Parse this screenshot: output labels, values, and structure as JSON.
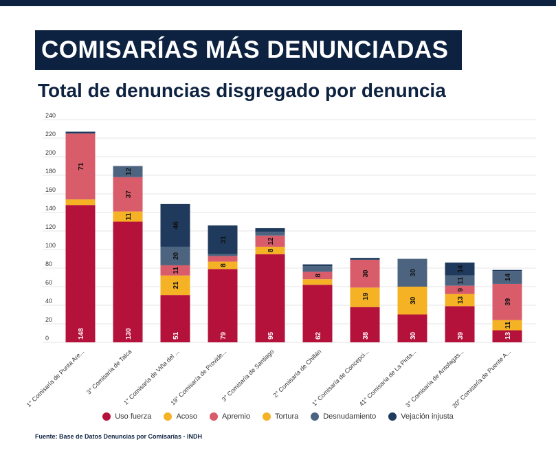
{
  "header": {
    "title": "COMISARÍAS MÁS DENUNCIADAS",
    "subtitle": "Total de denuncias disgregado por denuncia"
  },
  "source": "Fuente: Base de Datos Denuncias por Comisarías - INDH",
  "colors": {
    "header_bg": "#0d2240",
    "Uso fuerza": "#b5123b",
    "Acoso": "#f4b224",
    "Apremio": "#d95c6b",
    "Tortura": "#f4b224",
    "Desnudamiento": "#4d6480",
    "Vejación injusta": "#1f3a5c"
  },
  "chart_data": {
    "type": "bar",
    "stacked": true,
    "categories": [
      "1° Comisaría de Punta Are...",
      "3° Comisaría de Talca",
      "1° Comisaría de Viña del ...",
      "19° Comisaría de Provide...",
      "3° Comisaría de Santiago",
      "2° Comisaría de Chillán",
      "1° Comisaría de Concepci...",
      "41° Comisaría de La Pinta...",
      "3° Comisaría de Antofagas...",
      "20° Comisaría de Puente A..."
    ],
    "series": [
      {
        "name": "Uso fuerza",
        "values": [
          148,
          130,
          51,
          79,
          95,
          62,
          38,
          30,
          39,
          13
        ]
      },
      {
        "name": "Acoso",
        "values": [
          2,
          0,
          0,
          0,
          0,
          0,
          2,
          0,
          0,
          0
        ]
      },
      {
        "name": "Tortura",
        "values": [
          4,
          11,
          21,
          8,
          8,
          6,
          19,
          30,
          13,
          11
        ]
      },
      {
        "name": "Apremio",
        "values": [
          71,
          37,
          11,
          6,
          12,
          8,
          30,
          0,
          9,
          39
        ]
      },
      {
        "name": "Desnudamiento",
        "values": [
          0,
          12,
          20,
          2,
          4,
          6,
          0,
          30,
          11,
          14
        ]
      },
      {
        "name": "Vejación injusta",
        "values": [
          2,
          0,
          46,
          31,
          4,
          2,
          2,
          0,
          14,
          1
        ]
      }
    ],
    "data_labels": [
      [
        "148",
        "",
        "",
        "71",
        "",
        ""
      ],
      [
        "130",
        "",
        "11",
        "37",
        "12",
        ""
      ],
      [
        "51",
        "",
        "21",
        "11",
        "20",
        "46"
      ],
      [
        "79",
        "",
        "8",
        "",
        "",
        "31"
      ],
      [
        "95",
        "",
        "8",
        "12",
        "",
        ""
      ],
      [
        "62",
        "",
        "",
        "8",
        "",
        ""
      ],
      [
        "38",
        "",
        "19",
        "30",
        "",
        ""
      ],
      [
        "30",
        "",
        "30",
        "",
        "30",
        ""
      ],
      [
        "39",
        "",
        "13",
        "9",
        "11",
        "14"
      ],
      [
        "13",
        "",
        "11",
        "39",
        "14",
        ""
      ]
    ],
    "label_rows": [
      [
        "148",
        "71"
      ],
      [
        "130",
        "11",
        "37",
        "12"
      ],
      [
        "51",
        "21",
        "11",
        "20",
        "46"
      ],
      [
        "79",
        "8",
        "31"
      ],
      [
        "95",
        "8",
        "12"
      ],
      [
        "62",
        "8"
      ],
      [
        "38",
        "30",
        "19"
      ],
      [
        "30",
        "30",
        "30"
      ],
      [
        "39",
        "13",
        "9",
        "11",
        "14"
      ],
      [
        "13",
        "11",
        "39",
        "14"
      ]
    ],
    "yticks": [
      "0",
      "20",
      "40",
      "60",
      "80",
      "100",
      "120",
      "140",
      "160",
      "180",
      "200",
      "220",
      "240"
    ],
    "ylim": [
      0,
      240
    ],
    "grid": true,
    "legend_position": "bottom",
    "legend": [
      "Uso fuerza",
      "Acoso",
      "Apremio",
      "Tortura",
      "Desnudamiento",
      "Vejación injusta"
    ]
  }
}
